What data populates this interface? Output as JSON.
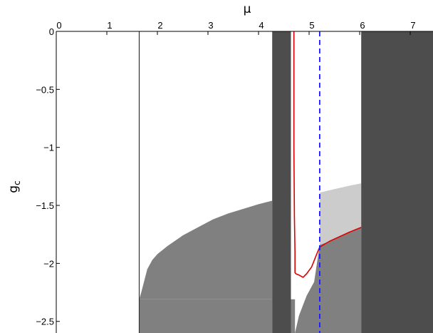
{
  "chart_data": {
    "type": "area",
    "xlabel": "μ",
    "ylabel": "g",
    "ylabel_subscript": "c",
    "x_axis_position": "top",
    "xlim": [
      0,
      7.45
    ],
    "ylim": [
      -2.6,
      0
    ],
    "xticks": [
      0,
      1,
      2,
      3,
      4,
      5,
      6,
      7
    ],
    "yticks": [
      0,
      -0.5,
      -1,
      -1.5,
      -2,
      -2.5
    ],
    "ytick_labels": [
      "0",
      "−0.5",
      "−1",
      "−1.5",
      "−2",
      "−2.5"
    ],
    "grid": false,
    "colors": {
      "dark_band": "#4d4d4d",
      "mid_region": "#808080",
      "light_region": "#cccccc",
      "red_curve": "#e00000",
      "dashed_line": "#1a1aff",
      "vertical_line": "#333333"
    },
    "regions": [
      {
        "color": "mid",
        "x": [
          1.64,
          1.68,
          1.8,
          1.9,
          2.0,
          2.2,
          2.5,
          2.8,
          3.1,
          3.4,
          3.7,
          4.0,
          4.27,
          4.27,
          1.64
        ],
        "y": [
          -2.31,
          -2.25,
          -2.05,
          -1.97,
          -1.92,
          -1.85,
          -1.76,
          -1.69,
          -1.62,
          -1.57,
          -1.53,
          -1.49,
          -1.46,
          -2.31,
          -2.31
        ]
      },
      {
        "color": "mid",
        "x": [
          1.64,
          4.27,
          4.27,
          1.64
        ],
        "y": [
          -2.31,
          -2.31,
          -2.6,
          -2.6
        ]
      },
      {
        "color": "mid",
        "x": [
          4.64,
          4.72,
          4.72,
          4.64
        ],
        "y": [
          -2.31,
          -2.31,
          -2.6,
          -2.6
        ]
      },
      {
        "color": "mid",
        "x": [
          4.72,
          4.8,
          4.95,
          5.1,
          5.21,
          5.4,
          5.6,
          5.8,
          6.03,
          6.03,
          4.72
        ],
        "y": [
          -2.6,
          -2.45,
          -2.28,
          -2.16,
          -1.84,
          -1.81,
          -1.77,
          -1.73,
          -1.69,
          -2.6,
          -2.6
        ]
      },
      {
        "color": "light",
        "x": [
          5.21,
          5.4,
          5.6,
          5.8,
          6.03,
          6.03,
          5.8,
          5.6,
          5.4,
          5.21
        ],
        "y": [
          -1.84,
          -1.81,
          -1.77,
          -1.73,
          -1.69,
          -1.31,
          -1.33,
          -1.35,
          -1.37,
          -1.39
        ]
      },
      {
        "color": "dark",
        "x": [
          4.27,
          4.64,
          4.64,
          4.27
        ],
        "y": [
          0,
          0,
          -2.6,
          -2.6
        ]
      },
      {
        "color": "dark",
        "x": [
          6.03,
          7.45,
          7.45,
          6.03
        ],
        "y": [
          0,
          0,
          -2.6,
          -2.6
        ]
      }
    ],
    "series": [
      {
        "style": "red_solid",
        "x": [
          4.7,
          4.7,
          4.71,
          4.72,
          4.72,
          4.74,
          4.8,
          4.88,
          4.95,
          5.05,
          5.15,
          5.21,
          5.4,
          5.6,
          5.8,
          6.03
        ],
        "y": [
          0,
          -1.0,
          -1.6,
          -1.9,
          -2.08,
          -2.09,
          -2.1,
          -2.12,
          -2.09,
          -2.03,
          -1.92,
          -1.86,
          -1.81,
          -1.77,
          -1.73,
          -1.69
        ]
      },
      {
        "style": "blue_dashed",
        "x": [
          5.21,
          5.21
        ],
        "y": [
          0,
          -2.6
        ]
      },
      {
        "style": "thin_vertical",
        "x": [
          1.64,
          1.64
        ],
        "y": [
          0,
          -2.6
        ]
      }
    ]
  }
}
